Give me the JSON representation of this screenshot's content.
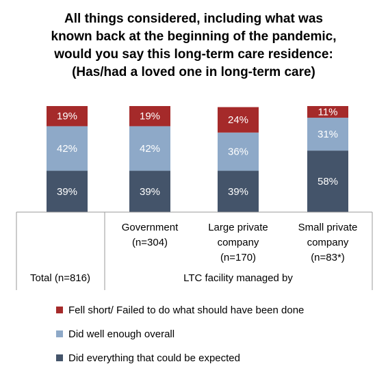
{
  "chart_data": {
    "type": "bar",
    "stacked": true,
    "title_lines": [
      "All things considered, including what was",
      "known back at the beginning of the pandemic,",
      "would you say this long-term care residence:",
      "(Has/had a loved one in long-term care)"
    ],
    "categories": [
      [
        "Total (n=816)"
      ],
      [
        "Government",
        "(n=304)"
      ],
      [
        "Large private",
        "company",
        "(n=170)"
      ],
      [
        "Small private",
        "company",
        "(n=83*)"
      ]
    ],
    "group_label": "LTC facility managed by",
    "series": [
      {
        "name": "Did everything that could be expected",
        "color": "#44546a",
        "values": [
          39,
          39,
          39,
          58
        ],
        "labels": [
          "39%",
          "39%",
          "39%",
          "58%"
        ]
      },
      {
        "name": "Did well enough overall",
        "color": "#8ea9c8",
        "values": [
          42,
          42,
          36,
          31
        ],
        "labels": [
          "42%",
          "42%",
          "36%",
          "31%"
        ]
      },
      {
        "name": "Fell short/ Failed to do what should have been done",
        "color": "#a52a2a",
        "values": [
          19,
          19,
          24,
          11
        ],
        "labels": [
          "19%",
          "19%",
          "24%",
          "11%"
        ]
      }
    ],
    "legend_order": [
      2,
      1,
      0
    ],
    "legend_placement": "bottom",
    "ylim": [
      0,
      100
    ],
    "grid": false
  }
}
